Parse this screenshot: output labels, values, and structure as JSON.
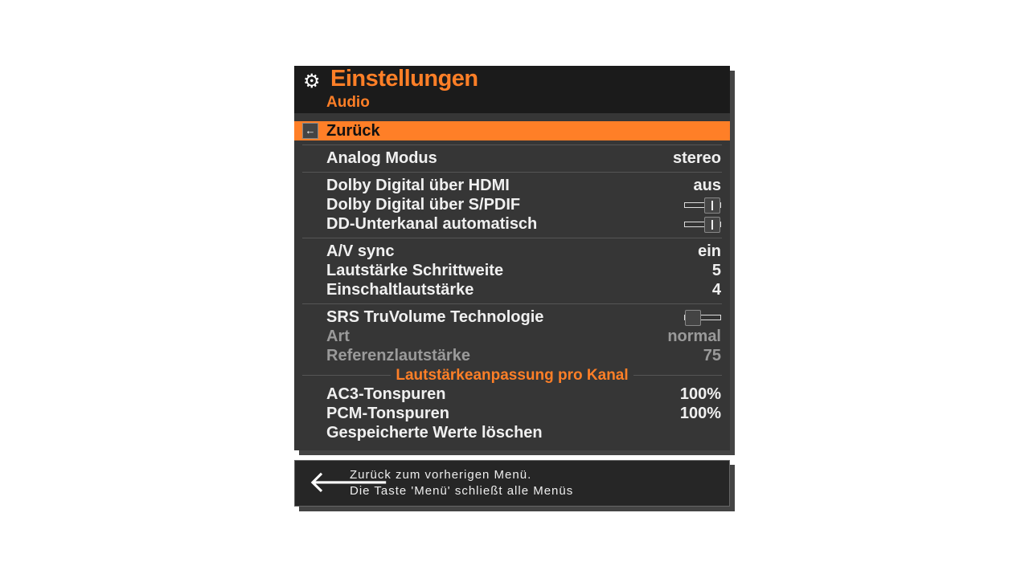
{
  "header": {
    "icon": "gear-icon",
    "title": "Einstellungen",
    "subtitle": "Audio"
  },
  "back": {
    "label": "Zurück",
    "icon": "arrow-left-icon"
  },
  "items": [
    {
      "label": "Analog Modus",
      "value": "stereo"
    },
    {
      "label": "Dolby Digital über HDMI",
      "value": "aus"
    },
    {
      "label": "Dolby Digital über S/PDIF",
      "toggle": "on"
    },
    {
      "label": "DD-Unterkanal automatisch",
      "toggle": "on"
    },
    {
      "label": "A/V sync",
      "value": "ein"
    },
    {
      "label": "Lautstärke Schrittweite",
      "value": "5"
    },
    {
      "label": "Einschaltlautstärke",
      "value": "4"
    },
    {
      "label": "SRS TruVolume Technologie",
      "toggle": "off"
    },
    {
      "label": "Art",
      "value": "normal",
      "disabled": true
    },
    {
      "label": "Referenzlautstärke",
      "value": "75",
      "disabled": true
    },
    {
      "label": "AC3-Tonspuren",
      "value": "100%"
    },
    {
      "label": "PCM-Tonspuren",
      "value": "100%"
    },
    {
      "label": "Gespeicherte Werte löschen"
    }
  ],
  "section": "Lautstärkeanpassung pro Kanal",
  "colors": {
    "accent": "#ff7f27",
    "panel": "#363636",
    "header": "#1b1b1b"
  },
  "footer": {
    "icon": "arrow-left-icon",
    "line1": "Zurück zum vorherigen Menü.",
    "line2": "Die Taste 'Menü' schließt alle Menüs"
  }
}
